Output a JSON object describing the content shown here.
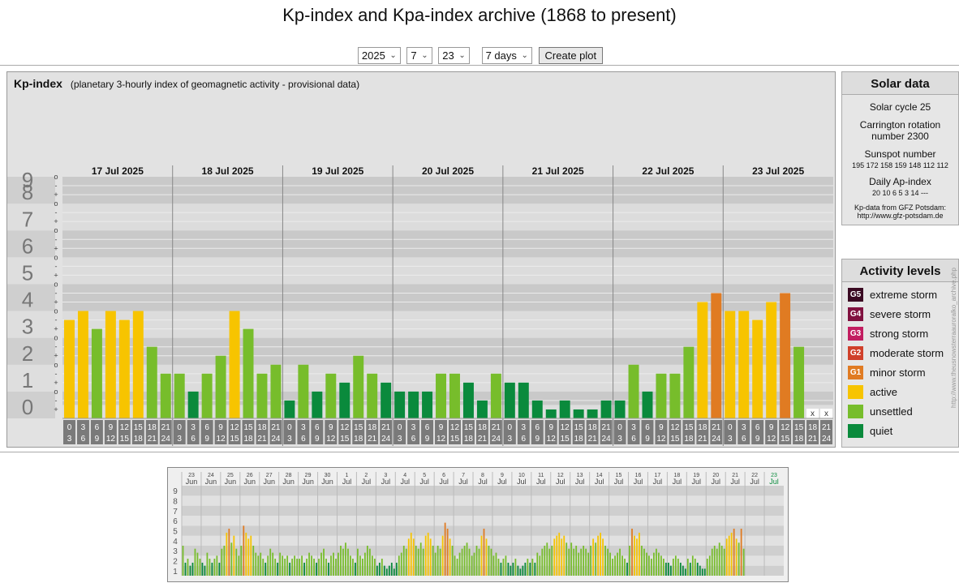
{
  "title": "Kp-index and Kpa-index archive (1868 to present)",
  "controls": {
    "year": "2025",
    "month": "7",
    "day": "23",
    "range": "7 days",
    "button": "Create plot"
  },
  "panel": {
    "label": "Kp-index",
    "subtitle": "(planetary 3-hourly index of geomagnetic activity - provisional data)"
  },
  "solar": {
    "heading": "Solar data",
    "cycle": "Solar cycle 25",
    "carrington_1": "Carrington rotation",
    "carrington_2": "number 2300",
    "sunspot_label": "Sunspot number",
    "sunspots": "195 172 158 159 148 112 112",
    "ap_label": "Daily Ap-index",
    "ap": "20   10   6   5   3   14   ---",
    "source_1": "Kp-data from  GFZ Potsdam:",
    "source_2": "http://www.gfz-potsdam.de"
  },
  "activity": {
    "heading": "Activity levels",
    "items": [
      {
        "code": "G5",
        "label": "extreme storm",
        "color": "#3a0a22"
      },
      {
        "code": "G4",
        "label": "severe storm",
        "color": "#80113f"
      },
      {
        "code": "G3",
        "label": "strong storm",
        "color": "#c21d60"
      },
      {
        "code": "G2",
        "label": "moderate storm",
        "color": "#d0402a"
      },
      {
        "code": "G1",
        "label": "minor storm",
        "color": "#e07b22"
      },
      {
        "code": "",
        "label": "active",
        "color": "#f7c400"
      },
      {
        "code": "",
        "label": "unsettled",
        "color": "#77bd2b"
      },
      {
        "code": "",
        "label": "quiet",
        "color": "#0a8a3c"
      }
    ]
  },
  "side_url": "http://www.theusnowsterraauroralko_archive.php",
  "chart_data": [
    {
      "type": "bar",
      "ylim": [
        0,
        9
      ],
      "yticks": [
        "0",
        "1",
        "2",
        "3",
        "4",
        "5",
        "6",
        "7",
        "8",
        "9"
      ],
      "minor_ticks": [
        "-",
        "o",
        "+"
      ],
      "days": [
        "17 Jul 2025",
        "18 Jul 2025",
        "19 Jul 2025",
        "20 Jul 2025",
        "21 Jul 2025",
        "22 Jul 2025",
        "23 Jul 2025"
      ],
      "hour_ticks": [
        [
          "0",
          "3"
        ],
        [
          "3",
          "6"
        ],
        [
          "6",
          "9"
        ],
        [
          "9",
          "12"
        ],
        [
          "12",
          "15"
        ],
        [
          "15",
          "18"
        ],
        [
          "18",
          "21"
        ],
        [
          "21",
          "24"
        ]
      ],
      "missing_marker": "x",
      "values": [
        3.667,
        4,
        3.333,
        4,
        3.667,
        4,
        2.667,
        1.667,
        1.667,
        1,
        1.667,
        2.333,
        4,
        3.333,
        1.667,
        2,
        0.667,
        2,
        1,
        1.667,
        1.333,
        2.333,
        1.667,
        1.333,
        1,
        1,
        1,
        1.667,
        1.667,
        1.333,
        0.667,
        1.667,
        1.333,
        1.333,
        0.667,
        0.333,
        0.667,
        0.333,
        0.333,
        0.667,
        0.667,
        2,
        1,
        1.667,
        1.667,
        2.667,
        4.333,
        4.667,
        4,
        4,
        3.667,
        4.333,
        4.667,
        2.667,
        null,
        null
      ]
    },
    {
      "type": "bar",
      "ylim": [
        0,
        9
      ],
      "yticks": [
        "1",
        "2",
        "3",
        "4",
        "5",
        "6",
        "7",
        "8",
        "9"
      ],
      "days": [
        {
          "d": "23",
          "m": "Jun"
        },
        {
          "d": "24",
          "m": "Jun"
        },
        {
          "d": "25",
          "m": "Jun"
        },
        {
          "d": "26",
          "m": "Jun"
        },
        {
          "d": "27",
          "m": "Jun"
        },
        {
          "d": "28",
          "m": "Jun"
        },
        {
          "d": "29",
          "m": "Jun"
        },
        {
          "d": "30",
          "m": "Jun"
        },
        {
          "d": "1",
          "m": "Jul"
        },
        {
          "d": "2",
          "m": "Jul"
        },
        {
          "d": "3",
          "m": "Jul"
        },
        {
          "d": "4",
          "m": "Jul"
        },
        {
          "d": "5",
          "m": "Jul"
        },
        {
          "d": "6",
          "m": "Jul"
        },
        {
          "d": "7",
          "m": "Jul"
        },
        {
          "d": "8",
          "m": "Jul"
        },
        {
          "d": "9",
          "m": "Jul"
        },
        {
          "d": "10",
          "m": "Jul"
        },
        {
          "d": "11",
          "m": "Jul"
        },
        {
          "d": "12",
          "m": "Jul"
        },
        {
          "d": "13",
          "m": "Jul"
        },
        {
          "d": "14",
          "m": "Jul"
        },
        {
          "d": "15",
          "m": "Jul"
        },
        {
          "d": "16",
          "m": "Jul"
        },
        {
          "d": "17",
          "m": "Jul"
        },
        {
          "d": "18",
          "m": "Jul"
        },
        {
          "d": "19",
          "m": "Jul"
        },
        {
          "d": "20",
          "m": "Jul"
        },
        {
          "d": "21",
          "m": "Jul"
        },
        {
          "d": "22",
          "m": "Jul"
        },
        {
          "d": "23",
          "m": "Jul"
        }
      ],
      "values": [
        3,
        1.3,
        1.7,
        1,
        1.3,
        2.7,
        2.3,
        1.7,
        1.3,
        1,
        2.3,
        1.7,
        1.3,
        1.7,
        2,
        1.3,
        2.7,
        3,
        4.3,
        4.7,
        3.3,
        4,
        2.7,
        2,
        3,
        5,
        4.3,
        3.7,
        4,
        3,
        2.3,
        2,
        2.3,
        1.7,
        1.3,
        2,
        2.7,
        2.3,
        1.7,
        1.3,
        2.3,
        2,
        1.7,
        2,
        1.3,
        1.7,
        2,
        1.7,
        1.7,
        2,
        1.3,
        1.7,
        2.3,
        2,
        1.7,
        1.3,
        1.7,
        2.3,
        2.7,
        1.7,
        1.3,
        2,
        2.3,
        1.7,
        2.3,
        3,
        2.7,
        3.3,
        2.7,
        2,
        1.7,
        1.3,
        2.7,
        2,
        1.7,
        2.3,
        3,
        2.7,
        2,
        1.7,
        1,
        1.3,
        1.7,
        1,
        0.7,
        1,
        1.3,
        0.7,
        1.3,
        2,
        2.3,
        3,
        2.7,
        3.7,
        4.3,
        3.7,
        3,
        2.7,
        3.3,
        2.7,
        4,
        4.3,
        3.7,
        3,
        2.3,
        3,
        2.7,
        4,
        5.3,
        4.7,
        3.7,
        3,
        2,
        1.7,
        2.3,
        2.7,
        3,
        3.3,
        2.7,
        2,
        2.3,
        3,
        2.7,
        4,
        4.7,
        3.7,
        3,
        2.7,
        2,
        2.3,
        1.7,
        1.3,
        1.7,
        2,
        1.3,
        1,
        1.3,
        1.7,
        1,
        0.7,
        1,
        1.3,
        1.7,
        1.3,
        1.7,
        1.3,
        2.3,
        2,
        2.7,
        3,
        3.3,
        2.7,
        3,
        3.7,
        4,
        4.3,
        3.7,
        4,
        3.3,
        2.7,
        3.3,
        2.7,
        3,
        2.3,
        2.7,
        3,
        2.7,
        2.3,
        3,
        3.7,
        3.3,
        4,
        4.3,
        3.7,
        3,
        2.7,
        2.3,
        1.7,
        2,
        2.3,
        2.7,
        2,
        1.7,
        1.3,
        3,
        4.7,
        4,
        3.7,
        4.3,
        3,
        2.7,
        2.3,
        2,
        1.7,
        2.3,
        2.7,
        2.3,
        2,
        1.7,
        1.3,
        1.3,
        1,
        1.7,
        2,
        1.7,
        1.3,
        1,
        0.7,
        1.7,
        1.3,
        2,
        1.7,
        1.3,
        1,
        0.7,
        0.7,
        1.7,
        2,
        2.7,
        3,
        2.7,
        3.3,
        3,
        2.7,
        3.7,
        4,
        4.3,
        4.7,
        3.7,
        3.3,
        4.7,
        2.7
      ]
    }
  ]
}
